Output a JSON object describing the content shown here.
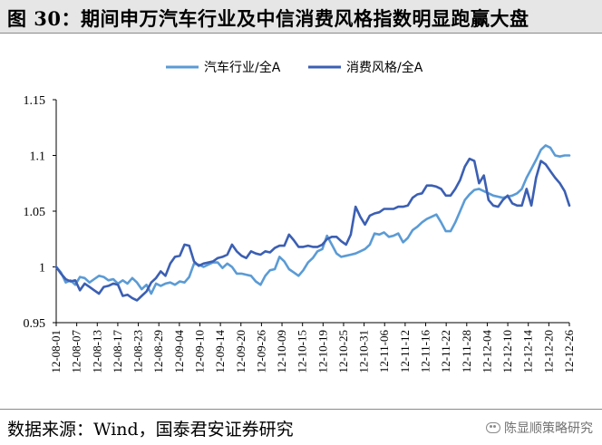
{
  "title": "图 30：期间申万汽车行业及中信消费风格指数明显跑赢大盘",
  "source": "数据来源：Wind，国泰君安证券研究",
  "watermark": {
    "text": "陈显顺策略研究"
  },
  "chart_data": {
    "type": "line",
    "title": "",
    "xlabel": "",
    "ylabel": "",
    "ylim": [
      0.95,
      1.15
    ],
    "yticks": [
      0.95,
      1,
      1.05,
      1.1,
      1.15
    ],
    "ytick_labels": [
      "0.95",
      "1",
      "1.05",
      "1.1",
      "1.15"
    ],
    "grid": false,
    "legend": "top",
    "x_ticks": [
      "12-08-01",
      "12-08-07",
      "12-08-13",
      "12-08-17",
      "12-08-23",
      "12-08-29",
      "12-09-04",
      "12-09-10",
      "12-09-14",
      "12-09-20",
      "12-09-26",
      "12-10-09",
      "12-10-15",
      "12-10-19",
      "12-10-25",
      "12-10-31",
      "12-11-06",
      "12-11-12",
      "12-11-16",
      "12-11-22",
      "12-11-28",
      "12-12-04",
      "12-12-10",
      "12-12-14",
      "12-12-20",
      "12-12-26"
    ],
    "series": [
      {
        "name": "汽车行业/全A",
        "color": "#5b9bd5",
        "values": [
          1.0,
          0.995,
          0.986,
          0.988,
          0.984,
          0.991,
          0.99,
          0.986,
          0.989,
          0.992,
          0.991,
          0.988,
          0.989,
          0.985,
          0.988,
          0.985,
          0.99,
          0.986,
          0.98,
          0.984,
          0.976,
          0.985,
          0.983,
          0.985,
          0.986,
          0.984,
          0.987,
          0.986,
          0.991,
          1.003,
          1.002,
          1.0,
          1.002,
          1.004,
          1.004,
          0.999,
          1.003,
          1.0,
          0.994,
          0.994,
          0.993,
          0.992,
          0.987,
          0.984,
          0.992,
          0.997,
          0.998,
          1.009,
          1.005,
          0.998,
          0.995,
          0.992,
          0.997,
          1.004,
          1.008,
          1.014,
          1.016,
          1.028,
          1.02,
          1.012,
          1.009,
          1.01,
          1.011,
          1.012,
          1.014,
          1.016,
          1.02,
          1.03,
          1.029,
          1.031,
          1.027,
          1.028,
          1.03,
          1.022,
          1.026,
          1.033,
          1.036,
          1.04,
          1.043,
          1.045,
          1.047,
          1.04,
          1.032,
          1.032,
          1.04,
          1.05,
          1.06,
          1.065,
          1.069,
          1.07,
          1.068,
          1.066,
          1.064,
          1.063,
          1.062,
          1.063,
          1.064,
          1.066,
          1.07,
          1.08,
          1.088,
          1.096,
          1.105,
          1.109,
          1.107,
          1.1,
          1.099,
          1.1,
          1.1
        ]
      },
      {
        "name": "消费风格/全A",
        "color": "#3b5fb3",
        "values": [
          1.0,
          0.994,
          0.989,
          0.987,
          0.988,
          0.979,
          0.985,
          0.982,
          0.979,
          0.976,
          0.982,
          0.983,
          0.985,
          0.984,
          0.974,
          0.975,
          0.972,
          0.97,
          0.974,
          0.978,
          0.986,
          0.99,
          0.996,
          0.992,
          1.003,
          1.009,
          1.01,
          1.02,
          1.019,
          1.005,
          1.001,
          1.003,
          1.004,
          1.005,
          1.008,
          1.009,
          1.011,
          1.02,
          1.014,
          1.01,
          1.008,
          1.014,
          1.012,
          1.011,
          1.014,
          1.013,
          1.017,
          1.019,
          1.019,
          1.029,
          1.024,
          1.018,
          1.018,
          1.019,
          1.018,
          1.018,
          1.02,
          1.025,
          1.027,
          1.027,
          1.023,
          1.02,
          1.029,
          1.054,
          1.045,
          1.038,
          1.046,
          1.048,
          1.049,
          1.052,
          1.052,
          1.052,
          1.054,
          1.054,
          1.055,
          1.062,
          1.065,
          1.066,
          1.073,
          1.073,
          1.072,
          1.07,
          1.064,
          1.064,
          1.07,
          1.078,
          1.09,
          1.097,
          1.095,
          1.075,
          1.082,
          1.06,
          1.055,
          1.054,
          1.06,
          1.064,
          1.057,
          1.055,
          1.055,
          1.07,
          1.055,
          1.08,
          1.095,
          1.092,
          1.086,
          1.08,
          1.075,
          1.068,
          1.055
        ]
      }
    ]
  }
}
